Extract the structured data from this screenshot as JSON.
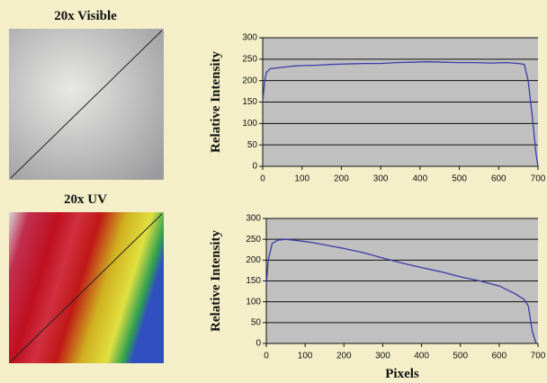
{
  "images": [
    {
      "label": "20x Visible"
    },
    {
      "label": "20x UV"
    }
  ],
  "chart_data": [
    {
      "type": "line",
      "y_label": "Relative Intensity",
      "x": [
        0,
        5,
        10,
        20,
        40,
        60,
        80,
        100,
        140,
        180,
        220,
        260,
        300,
        340,
        380,
        420,
        460,
        500,
        540,
        580,
        620,
        650,
        665,
        675,
        685,
        695,
        700
      ],
      "series": [
        {
          "color": "#3a3aa8",
          "values": [
            150,
            200,
            220,
            228,
            230,
            232,
            234,
            235,
            236,
            238,
            239,
            240,
            240,
            242,
            243,
            244,
            243,
            242,
            242,
            241,
            242,
            240,
            238,
            200,
            120,
            30,
            0
          ]
        }
      ],
      "xlim": [
        0,
        700
      ],
      "xticks": [
        0,
        100,
        200,
        300,
        400,
        500,
        600,
        700
      ],
      "ylim": [
        0,
        300
      ],
      "yticks": [
        0,
        50,
        100,
        150,
        200,
        250,
        300
      ],
      "grid": true
    },
    {
      "type": "line",
      "y_label": "Relative Intensity",
      "x_label": "Pixels",
      "x": [
        0,
        5,
        15,
        30,
        50,
        80,
        120,
        160,
        200,
        250,
        300,
        350,
        400,
        450,
        500,
        550,
        600,
        640,
        665,
        675,
        685,
        695
      ],
      "series": [
        {
          "color": "#3a3aa8",
          "values": [
            140,
            200,
            240,
            248,
            250,
            247,
            242,
            235,
            228,
            218,
            205,
            193,
            182,
            172,
            160,
            150,
            138,
            120,
            105,
            90,
            30,
            0
          ]
        }
      ],
      "xlim": [
        0,
        700
      ],
      "xticks": [
        0,
        100,
        200,
        300,
        400,
        500,
        600,
        700
      ],
      "ylim": [
        0,
        300
      ],
      "yticks": [
        0,
        50,
        100,
        150,
        200,
        250,
        300
      ],
      "grid": true
    }
  ]
}
